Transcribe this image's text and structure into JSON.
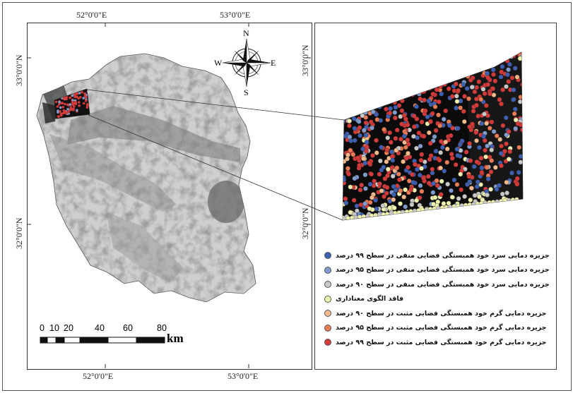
{
  "graticule": {
    "top_left_lon": "52°0'0\"E",
    "top_right_lon": "53°0'0\"E",
    "bottom_left_lon": "52°0'0\"E",
    "bottom_right_lon": "53°0'0\"E",
    "left_top_lat": "33°0'0\"N",
    "left_bottom_lat": "32°0'0\"N",
    "right_top_lat": "33°0'0\"N",
    "right_bottom_lat": "32°0'0\"N"
  },
  "compass": {
    "n": "N",
    "s": "S",
    "e": "E",
    "w": "W"
  },
  "scale_bar": {
    "ticks": [
      "0",
      "10",
      "20",
      "40",
      "60",
      "80"
    ],
    "unit": "km"
  },
  "legend": {
    "items": [
      {
        "label": "جزیره دمایی سرد خود همبستگی فضایی منفی در سطح ۹۹ درصد",
        "color": "#3f5fb0"
      },
      {
        "label": "جزیره دمایی سرد خود همبستگی فضایی منفی در سطح ۹۵ درصد",
        "color": "#7f9ccc"
      },
      {
        "label": "جزیره دمایی سرد خود همبستگی فضایی منفی در سطح ۹۰ درصد",
        "color": "#c8c8c8"
      },
      {
        "label": "فاقد الگوی معناداری",
        "color": "#f2f2b0"
      },
      {
        "label": "جزیره دمایی گرم خود همبستگی فضایی مثبت در سطح ۹۰ درصد",
        "color": "#f4b98a"
      },
      {
        "label": "جزیره دمایی گرم خود همبستگی فضایی مثبت در سطح ۹۵ درصد",
        "color": "#ea7c55"
      },
      {
        "label": "جزیره دمایی گرم خود همبستگی فضایی مثبت در سطح ۹۹ درصد",
        "color": "#d33a3a"
      }
    ]
  },
  "colors": {
    "cold99": "#3f5fb0",
    "cold95": "#7f9ccc",
    "cold90": "#c8c8c8",
    "none": "#f2f2b0",
    "hot90": "#f4b98a",
    "hot95": "#ea7c55",
    "hot99": "#d33a3a"
  }
}
